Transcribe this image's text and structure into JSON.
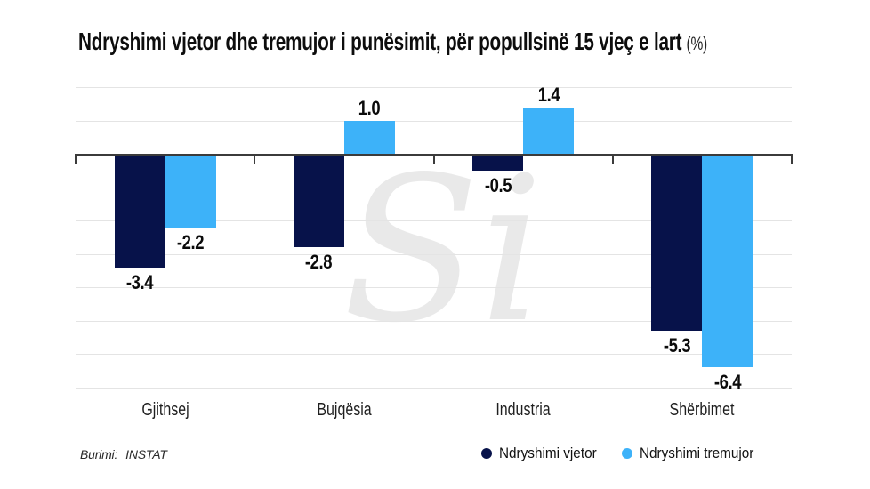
{
  "title": {
    "main": "Ndryshimi vjetor dhe tremujor i punësimit, për popullsinë 15 vjeç e lart",
    "suffix": "(%)"
  },
  "watermark": "Si",
  "source": {
    "label": "Burimi:",
    "value": "INSTAT"
  },
  "legend": [
    {
      "label": "Ndryshimi vjetor",
      "color": "#07124a"
    },
    {
      "label": "Ndryshimi tremujor",
      "color": "#3db2f9"
    }
  ],
  "colors": {
    "annual_bar": "#07124a",
    "quarterly_bar": "#3db2f9",
    "axis": "#3b3b3b",
    "gridline": "#e4e4e4",
    "watermark": "#e9e9e9"
  },
  "chart_data": {
    "type": "bar",
    "title": "Ndryshimi vjetor dhe tremujor i punësimit, për popullsinë 15 vjeç e lart (%)",
    "categories": [
      "Gjithsej",
      "Bujqësia",
      "Industria",
      "Shërbimet"
    ],
    "series": [
      {
        "name": "Ndryshimi vjetor",
        "color": "#07124a",
        "values": [
          -3.4,
          -2.8,
          -0.5,
          -5.3
        ]
      },
      {
        "name": "Ndryshimi tremujor",
        "color": "#3db2f9",
        "values": [
          -2.2,
          1.0,
          1.4,
          -6.4
        ]
      }
    ],
    "xlabel": "",
    "ylabel": "",
    "ylim": [
      -7,
      2
    ],
    "grid": "horizontal, every 1 unit, no tick labels",
    "value_labels": "one decimal, outside bar ends",
    "legend_position": "bottom-right",
    "source": "Burimi: INSTAT"
  }
}
